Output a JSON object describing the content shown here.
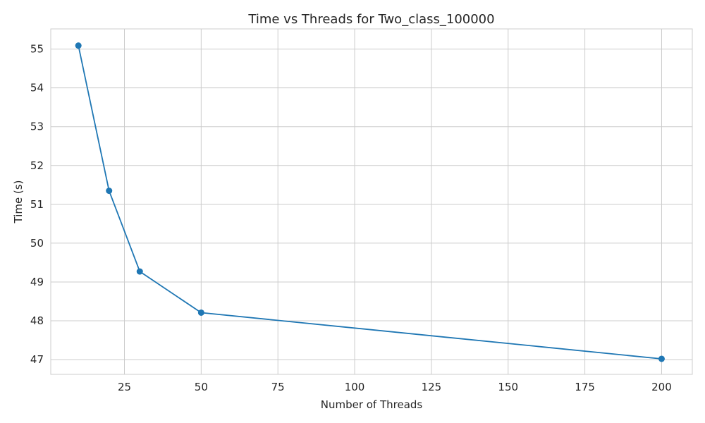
{
  "chart_data": {
    "type": "line",
    "title": "Time vs Threads for Two_class_100000",
    "xlabel": "Number of Threads",
    "ylabel": "Time (s)",
    "xlim": [
      1,
      210
    ],
    "ylim": [
      46.62,
      55.52
    ],
    "xticks": [
      25,
      50,
      75,
      100,
      125,
      150,
      175,
      200
    ],
    "yticks": [
      47,
      48,
      49,
      50,
      51,
      52,
      53,
      54,
      55
    ],
    "grid": true,
    "markers": true,
    "series": [
      {
        "color": "#1f77b4",
        "x": [
          10,
          20,
          30,
          50,
          200
        ],
        "y": [
          55.09,
          51.35,
          49.27,
          48.21,
          47.02
        ]
      }
    ]
  }
}
